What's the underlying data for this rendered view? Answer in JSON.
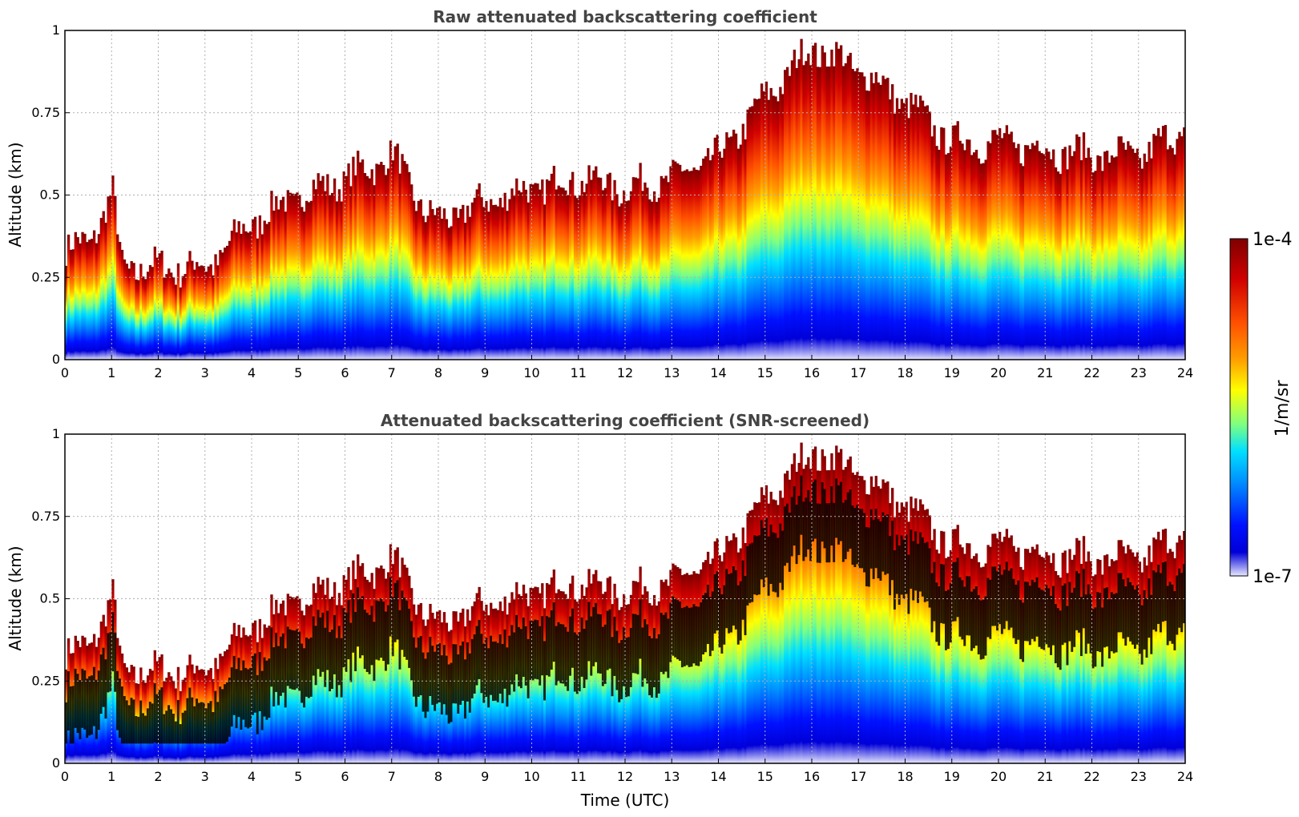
{
  "chart_data": [
    {
      "type": "heatmap",
      "title": "Raw attenuated backscattering coefficient",
      "xlabel": "",
      "ylabel": "Altitude (km)",
      "xlim": [
        0,
        24
      ],
      "ylim": [
        0,
        1
      ],
      "xticks": [
        "0",
        "1",
        "2",
        "3",
        "4",
        "5",
        "6",
        "7",
        "8",
        "9",
        "10",
        "11",
        "12",
        "13",
        "14",
        "15",
        "16",
        "17",
        "18",
        "19",
        "20",
        "21",
        "22",
        "23",
        "24"
      ],
      "yticks": [
        "0",
        "0.25",
        "0.5",
        "0.75",
        "1"
      ],
      "grid": true,
      "approx_layer_top_km": [
        {
          "t": 0,
          "z": 0.33
        },
        {
          "t": 0.5,
          "z": 0.36
        },
        {
          "t": 1.0,
          "z": 0.5
        },
        {
          "t": 1.2,
          "z": 0.28
        },
        {
          "t": 2,
          "z": 0.28
        },
        {
          "t": 3,
          "z": 0.28
        },
        {
          "t": 3.5,
          "z": 0.35
        },
        {
          "t": 4,
          "z": 0.42
        },
        {
          "t": 5,
          "z": 0.5
        },
        {
          "t": 6,
          "z": 0.55
        },
        {
          "t": 7,
          "z": 0.62
        },
        {
          "t": 7.7,
          "z": 0.45
        },
        {
          "t": 8,
          "z": 0.42
        },
        {
          "t": 9,
          "z": 0.48
        },
        {
          "t": 10,
          "z": 0.52
        },
        {
          "t": 11,
          "z": 0.55
        },
        {
          "t": 12,
          "z": 0.52
        },
        {
          "t": 13,
          "z": 0.55
        },
        {
          "t": 14,
          "z": 0.62
        },
        {
          "t": 15,
          "z": 0.8
        },
        {
          "t": 16,
          "z": 0.95
        },
        {
          "t": 17,
          "z": 0.88
        },
        {
          "t": 18,
          "z": 0.78
        },
        {
          "t": 19,
          "z": 0.66
        },
        {
          "t": 20,
          "z": 0.66
        },
        {
          "t": 21,
          "z": 0.64
        },
        {
          "t": 22,
          "z": 0.62
        },
        {
          "t": 23,
          "z": 0.62
        },
        {
          "t": 24,
          "z": 0.7
        }
      ]
    },
    {
      "type": "heatmap",
      "title": "Attenuated backscattering coefficient (SNR-screened)",
      "xlabel": "Time (UTC)",
      "ylabel": "Altitude (km)",
      "xlim": [
        0,
        24
      ],
      "ylim": [
        0,
        1
      ],
      "xticks": [
        "0",
        "1",
        "2",
        "3",
        "4",
        "5",
        "6",
        "7",
        "8",
        "9",
        "10",
        "11",
        "12",
        "13",
        "14",
        "15",
        "16",
        "17",
        "18",
        "19",
        "20",
        "21",
        "22",
        "23",
        "24"
      ],
      "yticks": [
        "0",
        "0.25",
        "0.5",
        "0.75",
        "1"
      ],
      "grid": true,
      "saturated_color": "#000000"
    }
  ],
  "colorbar": {
    "max_label": "1e-4",
    "min_label": "1e-7",
    "unit_label": "1/m/sr",
    "colormap": "jet",
    "min_color": "#e8e8ff",
    "max_color": "#7f0000"
  }
}
